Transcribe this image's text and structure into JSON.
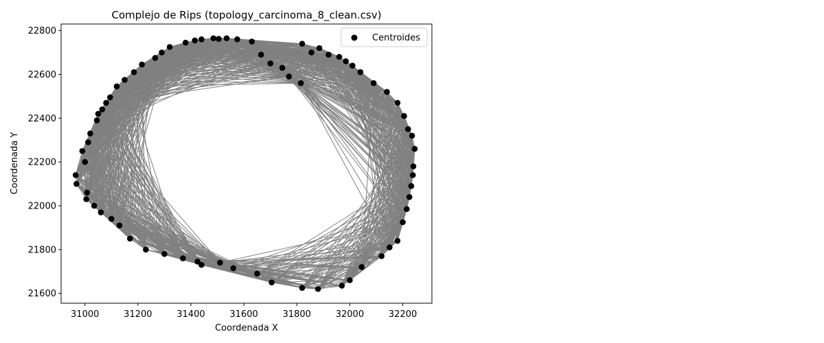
{
  "chart_data": {
    "type": "scatter",
    "title": "Complejo de Rips (topology_carcinoma_8_clean.csv)",
    "xlabel": "Coordenada X",
    "ylabel": "Coordenada Y",
    "xlim": [
      30910,
      32310
    ],
    "ylim": [
      21555,
      22830
    ],
    "xticks": [
      31000,
      31200,
      31400,
      31600,
      31800,
      32000,
      32200
    ],
    "yticks": [
      21600,
      21800,
      22000,
      22200,
      22400,
      22600,
      22800
    ],
    "grid": false,
    "legend": {
      "placement": "top-right",
      "entries": [
        "Centroides"
      ]
    },
    "colors": {
      "edges": "#808080",
      "points": "#000000"
    },
    "series": [
      {
        "name": "Centroides",
        "marker": "circle",
        "x": [
          30968,
          30965,
          31005,
          31012,
          31020,
          31045,
          31065,
          31080,
          31095,
          31120,
          31150,
          31185,
          31215,
          31265,
          31290,
          31320,
          31380,
          31415,
          31440,
          31485,
          31505,
          31535,
          31575,
          31630,
          31665,
          31700,
          31745,
          31770,
          31815,
          31820,
          31855,
          31885,
          31920,
          31960,
          31985,
          32010,
          32040,
          32090,
          32140,
          32180,
          32205,
          32220,
          32235,
          32245,
          32240,
          32238,
          32232,
          32225,
          32215,
          32200,
          32180,
          32150,
          32120,
          32045,
          32000,
          31970,
          31880,
          31820,
          31705,
          31650,
          31560,
          31510,
          31440,
          31425,
          31370,
          31300,
          31230,
          31170,
          31130,
          31100,
          31060,
          31035,
          31008,
          31000,
          30990,
          31050
        ],
        "y": [
          22100,
          22140,
          22030,
          22290,
          22330,
          22390,
          22440,
          22470,
          22495,
          22545,
          22575,
          22610,
          22645,
          22675,
          22700,
          22725,
          22745,
          22755,
          22760,
          22765,
          22762,
          22765,
          22760,
          22750,
          22690,
          22650,
          22630,
          22590,
          22560,
          22740,
          22700,
          22720,
          22690,
          22680,
          22660,
          22640,
          22610,
          22560,
          22520,
          22470,
          22410,
          22350,
          22320,
          22260,
          22180,
          22140,
          22090,
          22040,
          21985,
          21925,
          21840,
          21810,
          21770,
          21720,
          21660,
          21635,
          21620,
          21625,
          21650,
          21690,
          21715,
          21740,
          21730,
          21745,
          21760,
          21780,
          21800,
          21850,
          21910,
          21940,
          21970,
          22000,
          22060,
          22200,
          22250,
          22420
        ]
      }
    ]
  }
}
